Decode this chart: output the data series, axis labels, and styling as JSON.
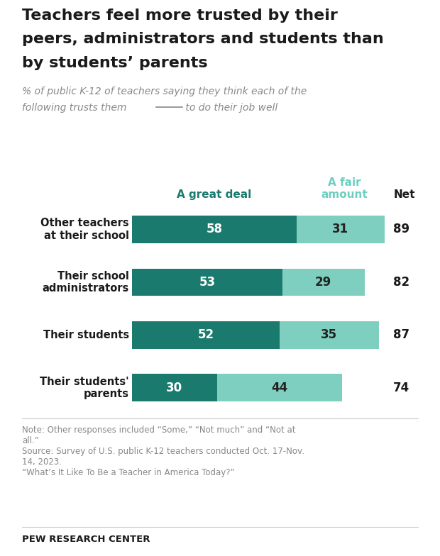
{
  "title_line1": "Teachers feel more trusted by their",
  "title_line2": "peers, administrators and students than",
  "title_line3": "by students’ parents",
  "subtitle_line1": "% of public K-12 of teachers saying they think each of the",
  "subtitle_line2": "following trusts them       to do their job well",
  "categories": [
    "Other teachers\nat their school",
    "Their school\nadministrators",
    "Their students",
    "Their students'\nparents"
  ],
  "great_deal": [
    58,
    53,
    52,
    30
  ],
  "fair_amount": [
    31,
    29,
    35,
    44
  ],
  "net": [
    89,
    82,
    87,
    74
  ],
  "color_great_deal": "#1a7a6e",
  "color_fair_amount": "#7ecfc0",
  "background_color": "#ffffff",
  "col_header_great_deal": "A great deal",
  "col_header_fair_amount": "A fair\namount",
  "col_header_net": "Net",
  "note_text": "Note: Other responses included “Some,” “Not much” and “Not at\nall.”\nSource: Survey of U.S. public K-12 teachers conducted Oct. 17-Nov.\n14, 2023.\n“What’s It Like To Be a Teacher in America Today?”",
  "footer_text": "PEW RESEARCH CENTER",
  "title_color": "#1a1a1a",
  "subtitle_color": "#888888",
  "net_color": "#1a1a1a",
  "note_color": "#888888",
  "header_great_deal_color": "#1a7a6e",
  "header_fair_amount_color": "#6ecfc0",
  "underline_color": "#888888"
}
